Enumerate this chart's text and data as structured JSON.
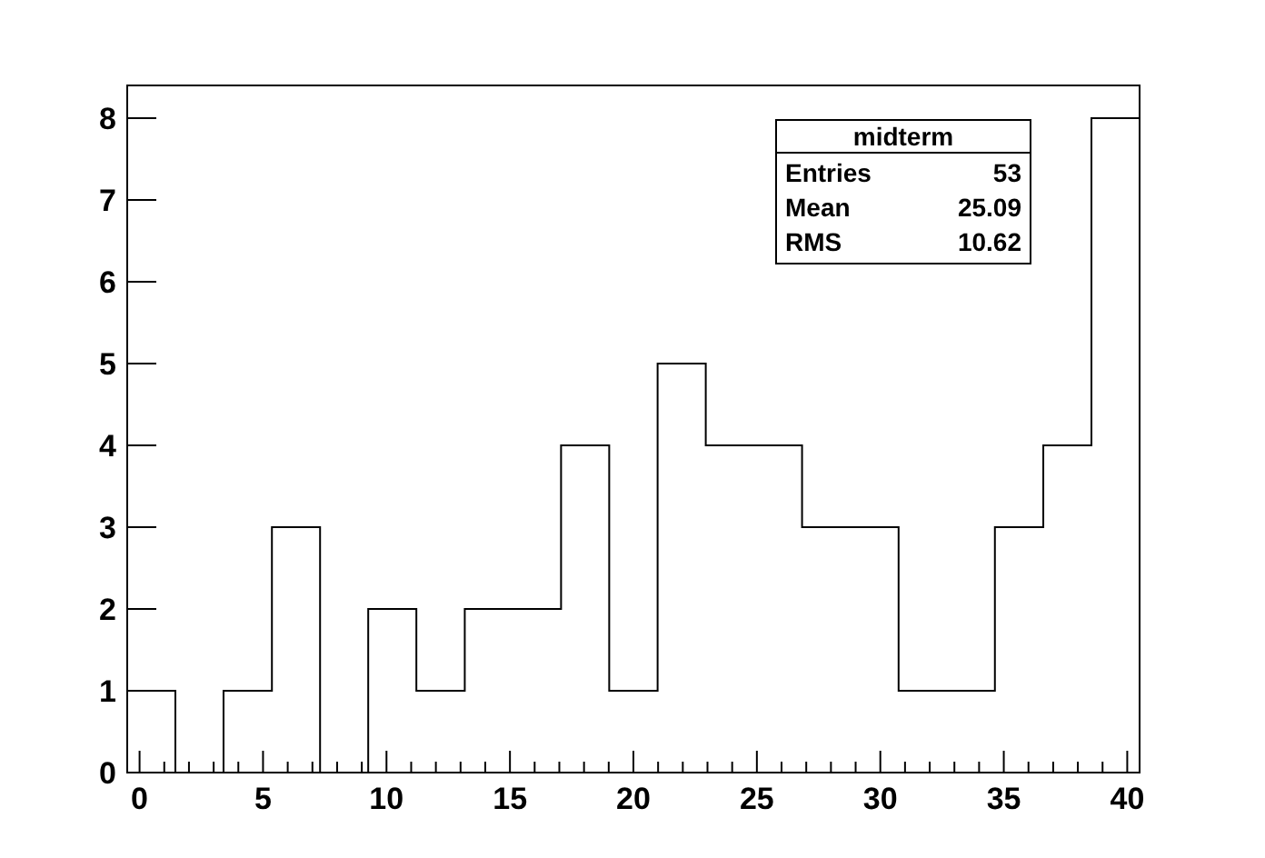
{
  "chart_data": {
    "type": "histogram",
    "bins": [
      -0.5,
      1.45,
      3.4,
      5.36,
      7.31,
      9.26,
      11.21,
      13.17,
      15.12,
      17.07,
      19.02,
      20.98,
      22.93,
      24.88,
      26.83,
      28.79,
      30.74,
      32.69,
      34.64,
      36.6,
      38.55,
      40.5
    ],
    "values": [
      1,
      0,
      1,
      3,
      0,
      2,
      1,
      2,
      2,
      4,
      1,
      5,
      4,
      4,
      3,
      3,
      1,
      1,
      3,
      4,
      8
    ],
    "color": "#000000",
    "xlim": [
      -0.5,
      40.5
    ],
    "xticks": [
      0,
      {
        "value": 1,
        "label": null
      },
      {
        "value": 2,
        "label": null
      },
      {
        "value": 3,
        "label": null
      },
      {
        "value": 4,
        "label": null
      },
      5,
      {
        "value": 6,
        "label": null
      },
      {
        "value": 7,
        "label": null
      },
      {
        "value": 8,
        "label": null
      },
      {
        "value": 9,
        "label": null
      },
      10,
      {
        "value": 11,
        "label": null
      },
      {
        "value": 12,
        "label": null
      },
      {
        "value": 13,
        "label": null
      },
      {
        "value": 14,
        "label": null
      },
      15,
      {
        "value": 16,
        "label": null
      },
      {
        "value": 17,
        "label": null
      },
      {
        "value": 18,
        "label": null
      },
      {
        "value": 19,
        "label": null
      },
      20,
      {
        "value": 21,
        "label": null
      },
      {
        "value": 22,
        "label": null
      },
      {
        "value": 23,
        "label": null
      },
      {
        "value": 24,
        "label": null
      },
      25,
      {
        "value": 26,
        "label": null
      },
      {
        "value": 27,
        "label": null
      },
      {
        "value": 28,
        "label": null
      },
      {
        "value": 29,
        "label": null
      },
      30,
      {
        "value": 31,
        "label": null
      },
      {
        "value": 32,
        "label": null
      },
      {
        "value": 33,
        "label": null
      },
      {
        "value": 34,
        "label": null
      },
      35,
      {
        "value": 36,
        "label": null
      },
      {
        "value": 37,
        "label": null
      },
      {
        "value": 38,
        "label": null
      },
      {
        "value": 39,
        "label": null
      },
      40
    ],
    "ylim": [
      0,
      8.4
    ],
    "yticks": [
      0,
      1,
      2,
      3,
      4,
      5,
      6,
      7,
      8
    ],
    "annotations": [
      "midterm",
      "Entries",
      "53",
      "Mean",
      "25.09",
      "RMS",
      "10.62"
    ]
  }
}
